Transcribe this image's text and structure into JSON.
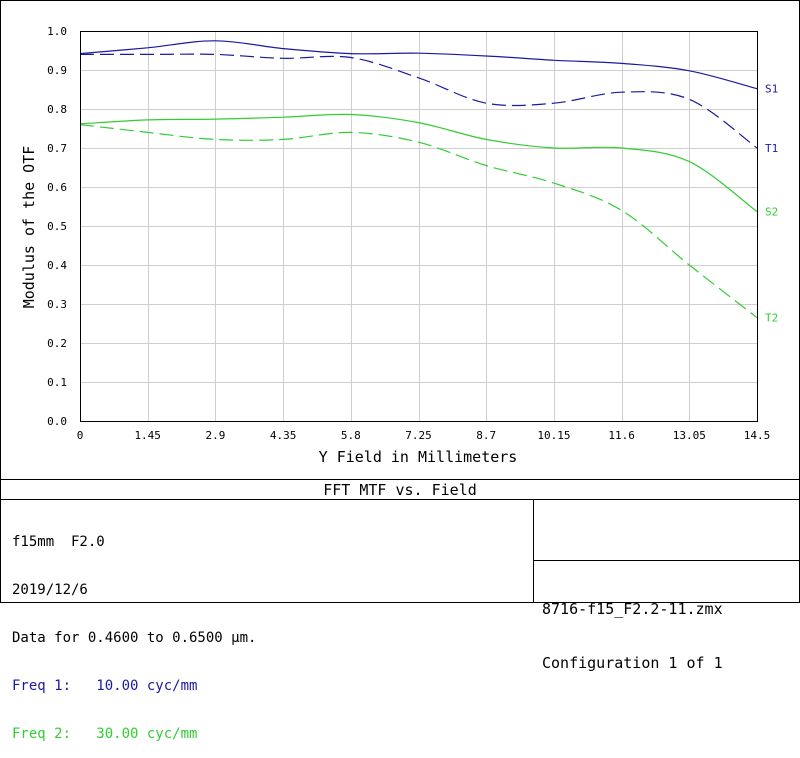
{
  "chart_data": {
    "type": "line",
    "title": "FFT MTF vs. Field",
    "xlabel": "Y Field in Millimeters",
    "ylabel": "Modulus of the OTF",
    "xlim": [
      0,
      14.5
    ],
    "ylim": [
      0,
      1.0
    ],
    "x_ticks": [
      "0",
      "1.45",
      "2.9",
      "4.35",
      "5.8",
      "7.25",
      "8.7",
      "10.15",
      "11.6",
      "13.05",
      "14.5"
    ],
    "y_ticks": [
      "0.0",
      "0.1",
      "0.2",
      "0.3",
      "0.4",
      "0.5",
      "0.6",
      "0.7",
      "0.8",
      "0.9",
      "1.0"
    ],
    "grid": true,
    "series": [
      {
        "name": "S1",
        "color": "#1a1aa0",
        "dash": false,
        "x": [
          0,
          1.45,
          2.9,
          4.35,
          5.8,
          7.25,
          8.7,
          10.15,
          11.6,
          13.05,
          14.5
        ],
        "y": [
          0.942,
          0.957,
          0.975,
          0.955,
          0.942,
          0.943,
          0.936,
          0.925,
          0.917,
          0.898,
          0.852
        ]
      },
      {
        "name": "T1",
        "color": "#1a1aa0",
        "dash": true,
        "x": [
          0,
          1.45,
          2.9,
          4.35,
          5.8,
          7.25,
          8.7,
          10.15,
          11.6,
          13.05,
          14.5
        ],
        "y": [
          0.94,
          0.94,
          0.94,
          0.93,
          0.932,
          0.88,
          0.815,
          0.815,
          0.843,
          0.825,
          0.7
        ]
      },
      {
        "name": "S2",
        "color": "#33cc33",
        "dash": false,
        "x": [
          0,
          1.45,
          2.9,
          4.35,
          5.8,
          7.25,
          8.7,
          10.15,
          11.6,
          13.05,
          14.5
        ],
        "y": [
          0.762,
          0.772,
          0.774,
          0.779,
          0.786,
          0.765,
          0.722,
          0.7,
          0.7,
          0.665,
          0.537
        ]
      },
      {
        "name": "T2",
        "color": "#33cc33",
        "dash": true,
        "x": [
          0,
          1.45,
          2.9,
          4.35,
          5.8,
          7.25,
          8.7,
          10.15,
          11.6,
          13.05,
          14.5
        ],
        "y": [
          0.76,
          0.74,
          0.722,
          0.722,
          0.74,
          0.715,
          0.655,
          0.61,
          0.54,
          0.4,
          0.265
        ]
      }
    ]
  },
  "footer": {
    "title": "FFT MTF vs. Field",
    "info": {
      "line1": "f15mm  F2.0",
      "line2": "2019/12/6",
      "line3": "Data for 0.4600 to 0.6500 µm.",
      "freq1": "Freq 1:   10.00 cyc/mm",
      "freq2": "Freq 2:   30.00 cyc/mm",
      "freq1_color": "#1a1aa0",
      "freq2_color": "#33cc33"
    },
    "file": {
      "name": "8716-f15_F2.2-11.zmx",
      "config": "Configuration 1 of 1"
    }
  }
}
